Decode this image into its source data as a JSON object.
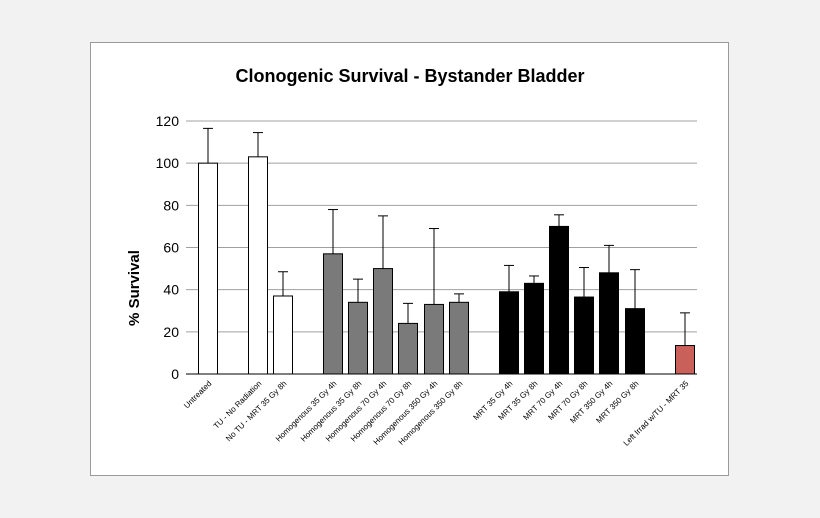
{
  "chart_data": {
    "type": "bar",
    "title": "Clonogenic Survival - Bystander Bladder",
    "xlabel": "",
    "ylabel": "% Survival",
    "ylim": [
      0,
      120
    ],
    "yticks": [
      0,
      20,
      40,
      60,
      80,
      100,
      120
    ],
    "grid": true,
    "error_bars": "upper",
    "colors": {
      "control": "#ffffff",
      "homogenous": "#7a7a7a",
      "mrt": "#000000",
      "left_irrad": "#c9605a",
      "bar_edge": "#000000",
      "grid": "#a0a0a0"
    },
    "categories": [
      "Untreated",
      "TU - No Radiation",
      "No TU - MRT 35 Gy 8h",
      "Homogenous 35 Gy 4h",
      "Homogenous 35 Gy 8h",
      "Homogenous 70 Gy 4h",
      "Homogenous 70 Gy 8h",
      "Homogenous 350 Gy 4h",
      "Homogenous 350 Gy 8h",
      "MRT 35 Gy 4h",
      "MRT 35 Gy 8h",
      "MRT 70 Gy 4h",
      "MRT 70 Gy 8h",
      "MRT 350 Gy 4h",
      "MRT 350 Gy 8h",
      "Left Irrad w/TU - MRT 35"
    ],
    "values": [
      100,
      103,
      37,
      57,
      34,
      50,
      24,
      33,
      34,
      39,
      43,
      70,
      36.5,
      48,
      31,
      13.5
    ],
    "error": [
      16.5,
      11.5,
      11.5,
      21,
      11,
      25,
      9.5,
      36,
      4,
      12.5,
      3.5,
      5.5,
      14,
      13,
      18.5,
      15.5
    ],
    "groups": [
      "control",
      "control",
      "control",
      "homogenous",
      "homogenous",
      "homogenous",
      "homogenous",
      "homogenous",
      "homogenous",
      "mrt",
      "mrt",
      "mrt",
      "mrt",
      "mrt",
      "mrt",
      "left_irrad"
    ]
  }
}
